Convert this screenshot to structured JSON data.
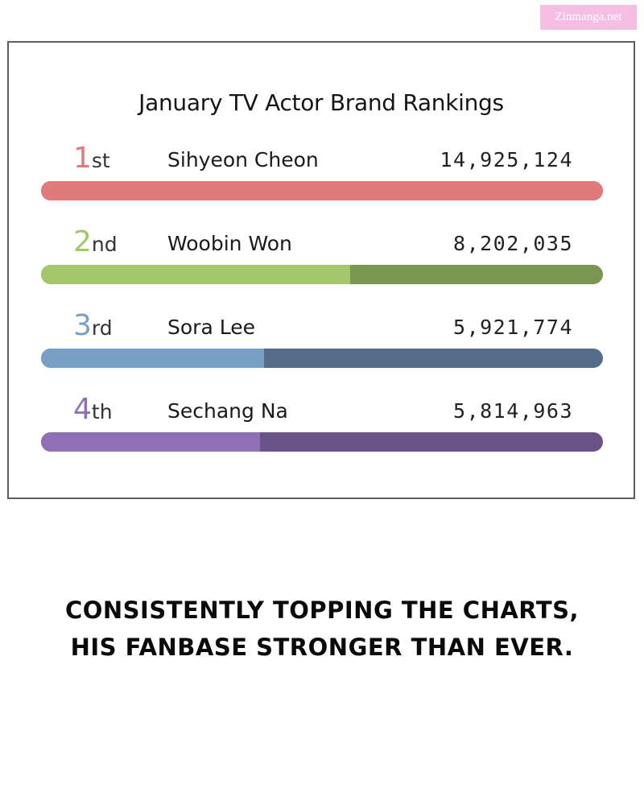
{
  "watermark": "Zinmanga.net",
  "chart_data": {
    "type": "bar",
    "title": "January TV Actor Brand Rankings",
    "xlabel": "",
    "ylabel": "",
    "xlim": [
      0,
      14925124
    ],
    "grid": false,
    "legend": "none",
    "series": [
      {
        "values": [
          14925124,
          8202035,
          5921774,
          5814963
        ]
      }
    ],
    "rows": [
      {
        "rank": "1",
        "suffix": "st",
        "name": "Sihyeon Cheon",
        "score": 14925124,
        "score_label": "14,925,124",
        "color": "#e17a7a",
        "track_color": "#d36868"
      },
      {
        "rank": "2",
        "suffix": "nd",
        "name": "Woobin Won",
        "score": 8202035,
        "score_label": "8,202,035",
        "color": "#a3c76b",
        "track_color": "#7a9752"
      },
      {
        "rank": "3",
        "suffix": "rd",
        "name": "Sora Lee",
        "score": 5921774,
        "score_label": "5,921,774",
        "color": "#799fc5",
        "track_color": "#556d89"
      },
      {
        "rank": "4",
        "suffix": "th",
        "name": "Sechang Na",
        "score": 5814963,
        "score_label": "5,814,963",
        "color": "#8f6fb5",
        "track_color": "#6a5389"
      }
    ]
  },
  "caption": {
    "line1": "CONSISTENTLY TOPPING THE CHARTS,",
    "line2": "HIS FANBASE STRONGER THAN EVER."
  }
}
